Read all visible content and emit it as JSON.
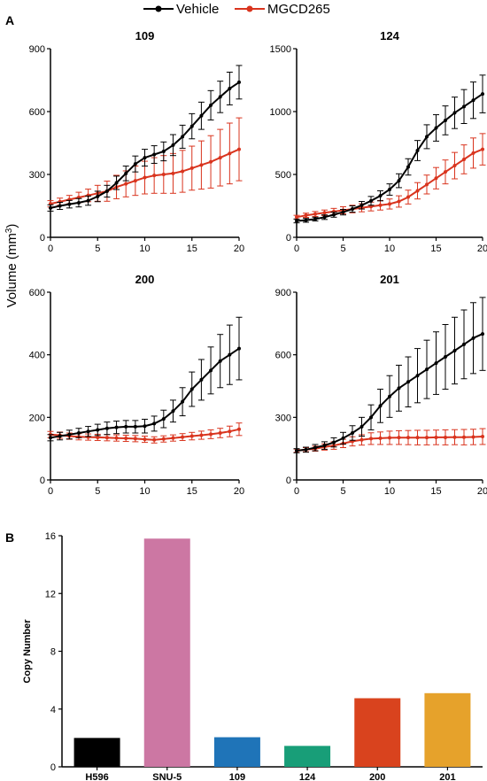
{
  "figure": {
    "panel_a_letter": "A",
    "panel_b_letter": "B",
    "ylabel_main": "Volume (mm",
    "ylabel_sup": "3",
    "ylabel_close": ")"
  },
  "legend": {
    "items": [
      {
        "label": "Vehicle",
        "color": "#000000"
      },
      {
        "label": "MGCD265",
        "color": "#d9341e"
      }
    ]
  },
  "chart_data": [
    {
      "type": "line",
      "title": "109",
      "xlim": [
        0,
        20
      ],
      "ylim": [
        0,
        900
      ],
      "xticks": [
        0,
        5,
        10,
        15,
        20
      ],
      "yticks": [
        0,
        300,
        600,
        900
      ],
      "x": [
        0,
        1,
        2,
        3,
        4,
        5,
        6,
        7,
        8,
        9,
        10,
        11,
        12,
        13,
        14,
        15,
        16,
        17,
        18,
        19,
        20
      ],
      "series": [
        {
          "name": "Vehicle",
          "color": "#000000",
          "values": [
            140,
            150,
            158,
            165,
            175,
            195,
            220,
            260,
            305,
            350,
            380,
            395,
            410,
            440,
            480,
            530,
            580,
            630,
            670,
            710,
            740
          ],
          "errors": [
            15,
            17,
            18,
            20,
            22,
            25,
            28,
            32,
            35,
            38,
            40,
            42,
            45,
            50,
            55,
            60,
            65,
            70,
            75,
            78,
            80
          ]
        },
        {
          "name": "MGCD265",
          "color": "#d9341e",
          "values": [
            160,
            170,
            180,
            190,
            200,
            210,
            220,
            240,
            255,
            270,
            285,
            295,
            300,
            305,
            315,
            330,
            345,
            360,
            380,
            400,
            420
          ],
          "errors": [
            15,
            17,
            20,
            25,
            30,
            38,
            48,
            56,
            62,
            70,
            78,
            85,
            90,
            95,
            100,
            105,
            115,
            125,
            135,
            145,
            150
          ]
        }
      ]
    },
    {
      "type": "line",
      "title": "124",
      "xlim": [
        0,
        20
      ],
      "ylim": [
        0,
        1500
      ],
      "xticks": [
        0,
        5,
        10,
        15,
        20
      ],
      "yticks": [
        0,
        500,
        1000,
        1500
      ],
      "x": [
        0,
        1,
        2,
        3,
        4,
        5,
        6,
        7,
        8,
        9,
        10,
        11,
        12,
        13,
        14,
        15,
        16,
        17,
        18,
        19,
        20
      ],
      "series": [
        {
          "name": "Vehicle",
          "color": "#000000",
          "values": [
            130,
            135,
            145,
            160,
            180,
            200,
            225,
            255,
            290,
            330,
            380,
            450,
            560,
            690,
            800,
            870,
            930,
            990,
            1040,
            1090,
            1140
          ],
          "errors": [
            15,
            15,
            15,
            18,
            20,
            22,
            25,
            30,
            35,
            40,
            45,
            55,
            65,
            80,
            95,
            105,
            115,
            125,
            135,
            145,
            150
          ]
        },
        {
          "name": "MGCD265",
          "color": "#d9341e",
          "values": [
            160,
            175,
            185,
            195,
            205,
            215,
            225,
            235,
            245,
            255,
            265,
            285,
            320,
            370,
            420,
            470,
            520,
            570,
            620,
            670,
            700
          ],
          "errors": [
            15,
            17,
            20,
            22,
            25,
            28,
            30,
            32,
            35,
            38,
            40,
            45,
            55,
            65,
            75,
            85,
            95,
            105,
            115,
            120,
            125
          ]
        }
      ]
    },
    {
      "type": "line",
      "title": "200",
      "xlim": [
        0,
        20
      ],
      "ylim": [
        0,
        600
      ],
      "xticks": [
        0,
        5,
        10,
        15,
        20
      ],
      "yticks": [
        0,
        200,
        400,
        600
      ],
      "x": [
        0,
        1,
        2,
        3,
        4,
        5,
        6,
        7,
        8,
        9,
        10,
        11,
        12,
        13,
        14,
        15,
        16,
        17,
        18,
        19,
        20
      ],
      "series": [
        {
          "name": "Vehicle",
          "color": "#000000",
          "values": [
            135,
            140,
            145,
            150,
            155,
            160,
            165,
            168,
            170,
            170,
            172,
            180,
            195,
            220,
            250,
            290,
            320,
            350,
            380,
            400,
            420
          ],
          "errors": [
            10,
            12,
            14,
            15,
            16,
            18,
            20,
            20,
            20,
            20,
            22,
            24,
            28,
            35,
            45,
            55,
            65,
            75,
            85,
            95,
            100
          ]
        },
        {
          "name": "MGCD265",
          "color": "#d9341e",
          "values": [
            145,
            143,
            140,
            138,
            137,
            136,
            135,
            134,
            133,
            132,
            130,
            128,
            131,
            134,
            137,
            140,
            143,
            146,
            150,
            155,
            162
          ],
          "errors": [
            10,
            10,
            10,
            10,
            10,
            10,
            10,
            10,
            10,
            10,
            10,
            10,
            10,
            10,
            11,
            12,
            13,
            14,
            15,
            17,
            20
          ]
        }
      ]
    },
    {
      "type": "line",
      "title": "201",
      "xlim": [
        0,
        20
      ],
      "ylim": [
        0,
        900
      ],
      "xticks": [
        0,
        5,
        10,
        15,
        20
      ],
      "yticks": [
        0,
        300,
        600,
        900
      ],
      "x": [
        0,
        1,
        2,
        3,
        4,
        5,
        6,
        7,
        8,
        9,
        10,
        11,
        12,
        13,
        14,
        15,
        16,
        17,
        18,
        19,
        20
      ],
      "series": [
        {
          "name": "Vehicle",
          "color": "#000000",
          "values": [
            140,
            145,
            155,
            165,
            180,
            200,
            225,
            255,
            300,
            355,
            400,
            440,
            470,
            500,
            530,
            560,
            590,
            620,
            650,
            680,
            700
          ],
          "errors": [
            10,
            12,
            15,
            18,
            22,
            28,
            35,
            45,
            60,
            80,
            100,
            110,
            120,
            130,
            140,
            150,
            155,
            160,
            165,
            170,
            175
          ]
        },
        {
          "name": "MGCD265",
          "color": "#d9341e",
          "values": [
            140,
            145,
            150,
            158,
            165,
            175,
            185,
            192,
            198,
            200,
            202,
            203,
            203,
            203,
            203,
            204,
            204,
            205,
            205,
            206,
            208
          ],
          "errors": [
            8,
            10,
            12,
            15,
            18,
            20,
            22,
            25,
            28,
            30,
            32,
            33,
            34,
            35,
            35,
            35,
            36,
            36,
            37,
            37,
            38
          ]
        }
      ]
    },
    {
      "type": "bar",
      "title": "",
      "xlabel": "",
      "ylabel": "Copy Number",
      "ylim": [
        0,
        16
      ],
      "yticks": [
        0,
        4,
        8,
        12,
        16
      ],
      "categories": [
        "H596",
        "SNU-5",
        "109",
        "124",
        "200",
        "201"
      ],
      "values": [
        2.0,
        15.8,
        2.05,
        1.45,
        4.75,
        5.1
      ],
      "colors": [
        "#000000",
        "#cc77a3",
        "#1f74b8",
        "#189e78",
        "#d9431e",
        "#e6a22b"
      ]
    }
  ]
}
